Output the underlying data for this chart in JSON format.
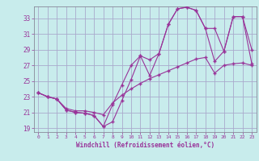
{
  "xlabel": "Windchill (Refroidissement éolien,°C)",
  "background_color": "#c8ecec",
  "grid_color": "#aaaacc",
  "line_color": "#993399",
  "x": [
    0,
    1,
    2,
    3,
    4,
    5,
    6,
    7,
    8,
    9,
    10,
    11,
    12,
    13,
    14,
    15,
    16,
    17,
    18,
    19,
    20,
    21,
    22,
    23
  ],
  "line1_y": [
    23.5,
    23.0,
    22.7,
    21.3,
    21.0,
    20.9,
    20.6,
    19.2,
    19.8,
    22.5,
    25.2,
    28.2,
    25.7,
    28.5,
    32.2,
    34.2,
    34.4,
    34.0,
    31.7,
    27.5,
    28.8,
    33.2,
    33.2,
    27.2
  ],
  "line2_y": [
    23.5,
    23.0,
    22.7,
    21.3,
    21.0,
    20.9,
    20.6,
    19.2,
    22.0,
    24.5,
    27.0,
    28.2,
    27.7,
    28.5,
    32.2,
    34.2,
    34.4,
    34.0,
    31.7,
    31.7,
    28.8,
    33.2,
    33.2,
    29.0
  ],
  "line3_y": [
    23.5,
    23.0,
    22.7,
    21.5,
    21.2,
    21.2,
    21.0,
    20.7,
    22.2,
    23.2,
    24.0,
    24.7,
    25.3,
    25.8,
    26.3,
    26.8,
    27.3,
    27.8,
    28.0,
    26.0,
    27.0,
    27.2,
    27.3,
    27.0
  ],
  "ylim": [
    18.5,
    34.5
  ],
  "xlim": [
    -0.5,
    23.5
  ],
  "yticks": [
    19,
    21,
    23,
    25,
    27,
    29,
    31,
    33
  ],
  "xticks": [
    0,
    1,
    2,
    3,
    4,
    5,
    6,
    7,
    8,
    9,
    10,
    11,
    12,
    13,
    14,
    15,
    16,
    17,
    18,
    19,
    20,
    21,
    22,
    23
  ]
}
